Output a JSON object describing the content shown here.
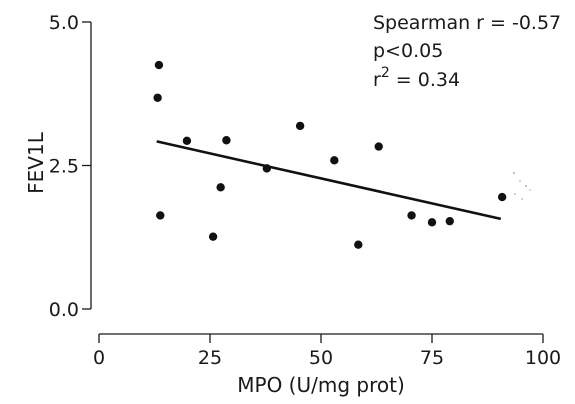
{
  "chart_data": {
    "type": "scatter",
    "xlabel": "MPO (U/mg prot)",
    "ylabel": "FEV1L",
    "xlim": [
      0,
      100
    ],
    "ylim": [
      0,
      5
    ],
    "x_ticks": [
      "0",
      "25",
      "50",
      "75",
      "100"
    ],
    "y_ticks": [
      "0.0",
      "2.5",
      "5.0"
    ],
    "grid": false,
    "points": [
      {
        "x": 13.5,
        "y": 4.25
      },
      {
        "x": 13.2,
        "y": 3.68
      },
      {
        "x": 13.8,
        "y": 1.63
      },
      {
        "x": 19.8,
        "y": 2.93
      },
      {
        "x": 25.7,
        "y": 1.26
      },
      {
        "x": 27.4,
        "y": 2.12
      },
      {
        "x": 28.7,
        "y": 2.94
      },
      {
        "x": 37.8,
        "y": 2.45
      },
      {
        "x": 45.3,
        "y": 3.19
      },
      {
        "x": 53.0,
        "y": 2.59
      },
      {
        "x": 58.4,
        "y": 1.12
      },
      {
        "x": 63.0,
        "y": 2.83
      },
      {
        "x": 70.4,
        "y": 1.63
      },
      {
        "x": 75.0,
        "y": 1.51
      },
      {
        "x": 79.0,
        "y": 1.53
      },
      {
        "x": 90.8,
        "y": 1.95
      }
    ],
    "regression": {
      "x1": 13.0,
      "y1": 2.92,
      "x2": 90.5,
      "y2": 1.57
    },
    "annotations": {
      "line1": "Spearman r = -0.57",
      "line2": "p<0.05",
      "line3_prefix": "r",
      "line3_sup": "2",
      "line3_suffix": " = 0.34"
    }
  }
}
